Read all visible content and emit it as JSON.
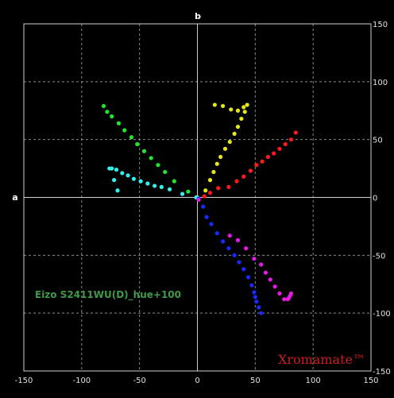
{
  "chart_data": {
    "type": "scatter",
    "xlabel": "a",
    "ylabel": "b",
    "xlim": [
      -150,
      150
    ],
    "ylim": [
      -150,
      150
    ],
    "x_ticks": [
      -150,
      -100,
      -50,
      0,
      50,
      100,
      150
    ],
    "y_ticks": [
      -150,
      -100,
      -50,
      0,
      50,
      100,
      150
    ],
    "grid": true,
    "annotations": [
      {
        "text": "Eizo S2411WU(D)_hue+100"
      },
      {
        "text": "Xromamate™"
      }
    ],
    "series": [
      {
        "color": "#ff1a1a",
        "x": [
          6,
          11,
          18,
          27,
          34,
          40,
          46,
          51,
          56,
          61,
          66,
          71,
          76,
          81,
          85
        ],
        "y": [
          1,
          4,
          8,
          9,
          14,
          18,
          23,
          28,
          31,
          35,
          38,
          42,
          46,
          50,
          56
        ]
      },
      {
        "color": "#e6e619",
        "x": [
          0,
          7,
          11,
          14,
          17,
          20,
          24,
          28,
          32,
          35,
          38,
          41,
          43,
          40,
          35,
          29,
          22,
          15
        ],
        "y": [
          0,
          6,
          15,
          22,
          29,
          35,
          42,
          48,
          55,
          61,
          68,
          74,
          80,
          78,
          75,
          76,
          79,
          80
        ]
      },
      {
        "color": "#22e62b",
        "x": [
          -8,
          -20,
          -28,
          -34,
          -40,
          -46,
          -52,
          -57,
          -63,
          -68,
          -74,
          -78,
          -81
        ],
        "y": [
          5,
          14,
          22,
          28,
          34,
          40,
          46,
          52,
          58,
          64,
          70,
          74,
          79
        ]
      },
      {
        "color": "#33f0f0",
        "x": [
          -1,
          -13,
          -24,
          -31,
          -37,
          -43,
          -49,
          -55,
          -60,
          -65,
          -70,
          -74,
          -76,
          -72,
          -69
        ],
        "y": [
          0,
          3,
          7,
          9,
          10,
          12,
          14,
          16,
          19,
          21,
          24,
          25,
          25,
          15,
          6
        ]
      },
      {
        "color": "#1a2aff",
        "x": [
          1,
          5,
          8,
          12,
          17,
          22,
          27,
          32,
          36,
          40,
          44,
          47,
          49,
          50,
          51,
          53,
          55
        ],
        "y": [
          -1,
          -8,
          -17,
          -23,
          -31,
          -38,
          -44,
          -50,
          -56,
          -62,
          -69,
          -76,
          -82,
          -86,
          -90,
          -95,
          -100
        ]
      },
      {
        "color": "#e619e6",
        "x": [
          1,
          28,
          35,
          42,
          49,
          55,
          59,
          63,
          67,
          71,
          75,
          78,
          81,
          79,
          80
        ],
        "y": [
          -2,
          -33,
          -37,
          -44,
          -53,
          -58,
          -65,
          -71,
          -77,
          -83,
          -88,
          -88,
          -83,
          -87,
          -85
        ]
      }
    ]
  }
}
